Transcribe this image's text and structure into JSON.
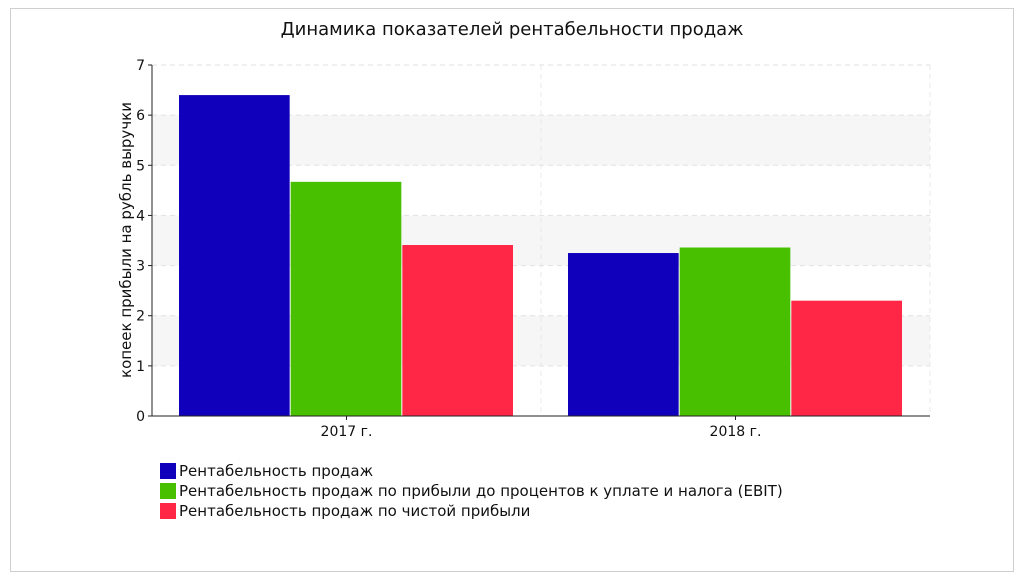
{
  "chart_data": {
    "type": "bar",
    "title": "Динамика показателей рентабельности продаж",
    "ylabel": "копеек прибыли на рубль выручки",
    "xlabel": "",
    "categories": [
      "2017 г.",
      "2018 г."
    ],
    "ylim": [
      0,
      7
    ],
    "yticks": [
      0,
      1,
      2,
      3,
      4,
      5,
      6,
      7
    ],
    "grid": true,
    "legend_position": "bottom-left",
    "series": [
      {
        "name": "Рентабельность продаж",
        "values": [
          6.4,
          3.25
        ],
        "color": "#1100bb"
      },
      {
        "name": "Рентабельность продаж по прибыли до процентов к уплате и налога (EBIT)",
        "values": [
          4.67,
          3.36
        ],
        "color": "#48c000"
      },
      {
        "name": "Рентабельность продаж по чистой прибыли",
        "values": [
          3.41,
          2.3
        ],
        "color": "#ff2646"
      }
    ]
  }
}
